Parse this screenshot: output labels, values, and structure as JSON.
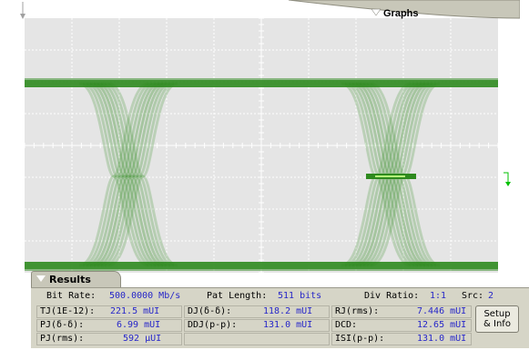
{
  "graphs_tab": {
    "label": "Graphs"
  },
  "results_tab": {
    "label": "Results"
  },
  "results": {
    "bit_rate_label": "Bit Rate:",
    "bit_rate_value": "500.0000 Mb/s",
    "pat_length_label": "Pat Length:",
    "pat_length_value": "511 bits",
    "div_ratio_label": "Div Ratio:",
    "div_ratio_value": "1:1",
    "src_label": "Src:",
    "src_value": "2",
    "rows": [
      [
        {
          "label": "TJ(1E-12):",
          "value": "221.5 mUI"
        },
        {
          "label": "DJ(δ-δ):",
          "value": "118.2 mUI"
        },
        {
          "label": "RJ(rms):",
          "value": "7.446 mUI"
        }
      ],
      [
        {
          "label": "PJ(δ-δ):",
          "value": "6.99 mUI"
        },
        {
          "label": "DDJ(p-p):",
          "value": "131.0 mUI"
        },
        {
          "label": "DCD:",
          "value": "12.65 mUI"
        }
      ],
      [
        {
          "label": "PJ(rms):",
          "value": "592 µUI"
        },
        {
          "label": "",
          "value": ""
        },
        {
          "label": "ISI(p-p):",
          "value": "131.0 mUI"
        }
      ]
    ],
    "setup_button": {
      "line1": "Setup",
      "line2": "& Info"
    }
  },
  "colors": {
    "grid_bg": "#e5e5e5",
    "trace": "#2e8a1e",
    "accent_line": "#b4ff7a",
    "panel": "#d6d5c7",
    "value_text": "#2626c8"
  },
  "icons": [
    "graphs-dropdown-triangle-icon",
    "results-dropdown-triangle-icon",
    "trigger-marker-icon",
    "ground-marker-icon"
  ]
}
